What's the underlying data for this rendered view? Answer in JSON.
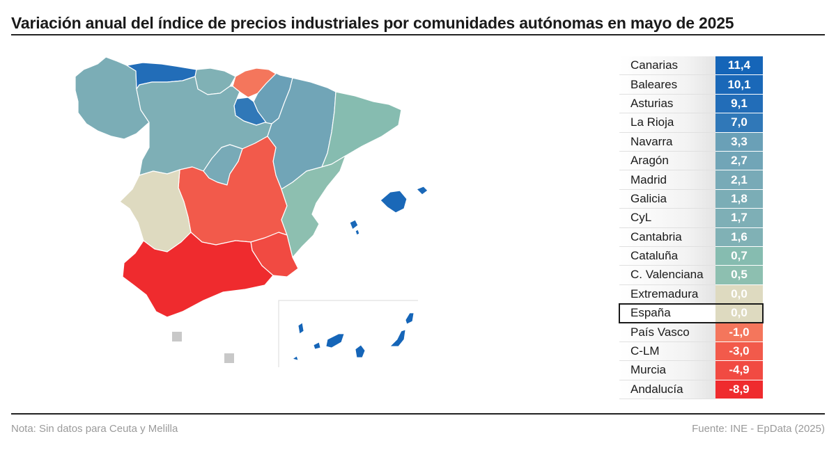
{
  "title": "Variación anual del índice de precios industriales por comunidades autónomas en mayo de 2025",
  "note": "Nota: Sin datos para Ceuta y Melilla",
  "source": "Fuente: INE - EpData (2025)",
  "colors": {
    "neg_strong": "#ef2b2e",
    "neg_mid": "#f25a4b",
    "neg_light": "#f4765c",
    "neutral": "#dedac0",
    "pos_teal_light": "#86bcb0",
    "pos_teal": "#7eb0b6",
    "pos_teal_dark": "#6ea3b6",
    "pos_blue": "#2f75b8",
    "pos_blue_dark": "#1565b8",
    "no_data": "#c8c8c8"
  },
  "chart_data": {
    "type": "choropleth",
    "regions": [
      {
        "name": "Canarias",
        "value": 11.4,
        "label": "11,4",
        "color": "#1565b8"
      },
      {
        "name": "Baleares",
        "value": 10.1,
        "label": "10,1",
        "color": "#1a68b8"
      },
      {
        "name": "Asturias",
        "value": 9.1,
        "label": "9,1",
        "color": "#226db8"
      },
      {
        "name": "La Rioja",
        "value": 7.0,
        "label": "7,0",
        "color": "#3078b8"
      },
      {
        "name": "Navarra",
        "value": 3.3,
        "label": "3,3",
        "color": "#6aa0b7"
      },
      {
        "name": "Aragón",
        "value": 2.7,
        "label": "2,7",
        "color": "#71a5b7"
      },
      {
        "name": "Madrid",
        "value": 2.1,
        "label": "2,1",
        "color": "#78aab7"
      },
      {
        "name": "Galicia",
        "value": 1.8,
        "label": "1,8",
        "color": "#7badb6"
      },
      {
        "name": "CyL",
        "value": 1.7,
        "label": "1,7",
        "color": "#7eafb6"
      },
      {
        "name": "Cantabria",
        "value": 1.6,
        "label": "1,6",
        "color": "#80b1b5"
      },
      {
        "name": "Cataluña",
        "value": 0.7,
        "label": "0,7",
        "color": "#86bcb0"
      },
      {
        "name": "C. Valenciana",
        "value": 0.5,
        "label": "0,5",
        "color": "#8dbfb0"
      },
      {
        "name": "Extremadura",
        "value": 0.0,
        "label": "0,0",
        "color": "#dedac0"
      },
      {
        "name": "España",
        "value": 0.0,
        "label": "0,0",
        "color": "#dedac0",
        "highlight": true
      },
      {
        "name": "País Vasco",
        "value": -1.0,
        "label": "-1,0",
        "color": "#f4765c"
      },
      {
        "name": "C-LM",
        "value": -3.0,
        "label": "-3,0",
        "color": "#f25a4b"
      },
      {
        "name": "Murcia",
        "value": -4.9,
        "label": "-4,9",
        "color": "#f14a42"
      },
      {
        "name": "Andalucía",
        "value": -8.9,
        "label": "-8,9",
        "color": "#ef2b2e"
      }
    ]
  }
}
